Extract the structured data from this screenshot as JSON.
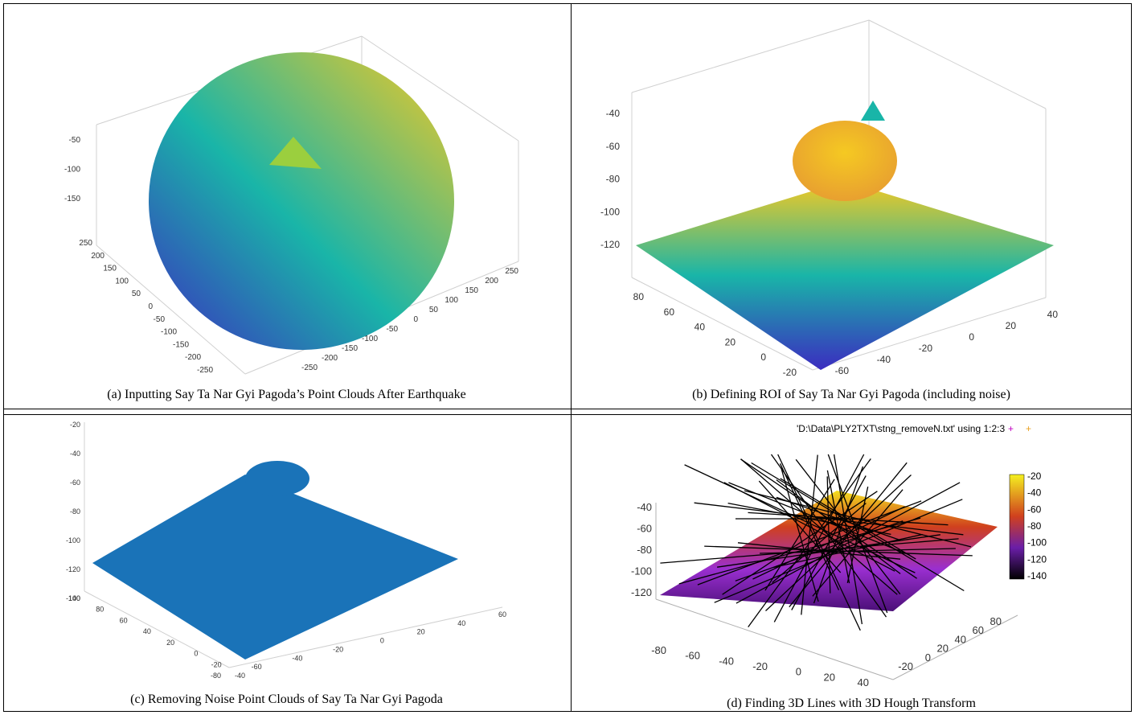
{
  "panels": {
    "a": {
      "caption": "(a) Inputting  Say Ta Nar Gyi Pagoda’s Point Clouds After Earthquake",
      "z_ticks": [
        "-50",
        "-100",
        "-150"
      ],
      "x_ticks": [
        "250",
        "200",
        "150",
        "100",
        "50",
        "0",
        "-50",
        "-100",
        "-150",
        "-200",
        "-250"
      ],
      "y_ticks": [
        "-250",
        "-200",
        "-150",
        "-100",
        "-50",
        "0",
        "50",
        "100",
        "150",
        "200",
        "250"
      ]
    },
    "b": {
      "caption": "(b)  Defining ROI of Say Ta Nar Gyi Pagoda (including  noise)",
      "z_ticks": [
        "-40",
        "-60",
        "-80",
        "-100",
        "-120"
      ],
      "x_ticks": [
        "80",
        "60",
        "40",
        "20",
        "0",
        "-20"
      ],
      "y_ticks": [
        "-60",
        "-40",
        "-20",
        "0",
        "20",
        "40"
      ]
    },
    "c": {
      "caption": "(c) Removing Noise Point Clouds of Say Ta Nar Gyi Pagoda",
      "z_ticks": [
        "-20",
        "-40",
        "-60",
        "-80",
        "-100",
        "-120",
        "-140"
      ],
      "x_ticks": [
        "100",
        "80",
        "60",
        "40",
        "20",
        "0",
        "-20",
        "-40"
      ],
      "y_ticks": [
        "-80",
        "-60",
        "-40",
        "-20",
        "0",
        "20",
        "40",
        "60"
      ]
    },
    "d": {
      "caption": "(d) Finding 3D Lines with 3D Hough Transform",
      "legend": "'D:\\Data\\PLY2TXT\\stng_removeN.txt' using 1:2:3",
      "colorbar_ticks": [
        "-20",
        "-40",
        "-60",
        "-80",
        "-100",
        "-120",
        "-140"
      ],
      "z_ticks": [
        "-40",
        "-60",
        "-80",
        "-100",
        "-120"
      ],
      "x_ticks": [
        "-80",
        "-60",
        "-40",
        "-20",
        "0",
        "20",
        "40"
      ],
      "y_ticks": [
        "-20",
        "0",
        "20",
        "40",
        "60",
        "80"
      ]
    }
  },
  "colors": {
    "parula_low": "#3b2cc0",
    "parula_mid": "#19b5a8",
    "parula_high": "#f5c922",
    "flat_blue": "#1a73b8",
    "gnuplot_low": "#4b0f78",
    "gnuplot_mid": "#d0401e",
    "gnuplot_high": "#f4e020"
  }
}
